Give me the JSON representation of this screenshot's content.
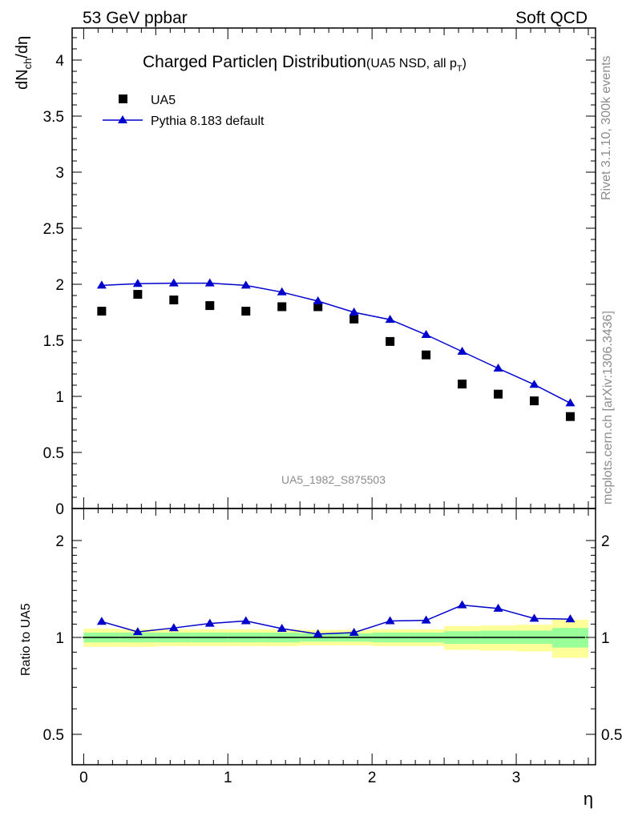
{
  "header": {
    "left": "53 GeV ppbar",
    "right": "Soft QCD"
  },
  "side": {
    "rivet": "Rivet 3.1.10,  300k events",
    "mcplots": "mcplots.cern.ch [arXiv:1306.3436]"
  },
  "colors": {
    "mc": "#0000cc",
    "band_inner": "#99ff99",
    "band_outer": "#ffff99",
    "data": "#000000"
  },
  "chart_data": [
    {
      "type": "scatter",
      "title": "Charged Particle",
      "title_eta": "η",
      "title_rest": " Distribution",
      "title_note": "(UA5 NSD, all p",
      "title_note_sub": "T",
      "title_note_end": ")",
      "ylabel_main": "dN",
      "ylabel_sub": "ch",
      "ylabel_tail": "/dη",
      "xlabel": "η",
      "watermark": "UA5_1982_S875503",
      "ylim": [
        0,
        4.3
      ],
      "xlim": [
        -0.08,
        3.55
      ],
      "yticks": [
        "0",
        "0.5",
        "1",
        "1.5",
        "2",
        "2.5",
        "3",
        "3.5",
        "4"
      ],
      "legend_position": "top-left",
      "series": [
        {
          "name": "UA5",
          "marker": "square",
          "x": [
            0.125,
            0.375,
            0.625,
            0.875,
            1.125,
            1.375,
            1.625,
            1.875,
            2.125,
            2.375,
            2.625,
            2.875,
            3.125,
            3.375
          ],
          "y": [
            1.76,
            1.91,
            1.86,
            1.81,
            1.76,
            1.8,
            1.8,
            1.69,
            1.49,
            1.37,
            1.11,
            1.02,
            0.96,
            0.82
          ]
        },
        {
          "name": "Pythia 8.183 default",
          "marker": "triangle",
          "x": [
            0.125,
            0.375,
            0.625,
            0.875,
            1.125,
            1.375,
            1.625,
            1.875,
            2.125,
            2.375,
            2.625,
            2.875,
            3.125,
            3.375
          ],
          "y": [
            1.99,
            2.005,
            2.01,
            2.01,
            1.99,
            1.93,
            1.85,
            1.75,
            1.685,
            1.55,
            1.4,
            1.25,
            1.105,
            0.94
          ]
        }
      ]
    },
    {
      "type": "line",
      "ylabel": "Ratio to UA5",
      "xlabel": "η",
      "ylim": [
        0.38,
        2.3
      ],
      "xlim": [
        -0.08,
        3.55
      ],
      "yticks": [
        "0.5",
        "1",
        "2"
      ],
      "xticks": [
        "0",
        "1",
        "2",
        "3"
      ],
      "bins": [
        0,
        0.25,
        0.5,
        0.75,
        1.0,
        1.25,
        1.5,
        1.75,
        2.0,
        2.25,
        2.5,
        2.75,
        3.0,
        3.25,
        3.5
      ],
      "band_inner": [
        [
          0.965,
          1.035
        ],
        [
          0.965,
          1.035
        ],
        [
          0.965,
          1.035
        ],
        [
          0.965,
          1.035
        ],
        [
          0.965,
          1.035
        ],
        [
          0.965,
          1.035
        ],
        [
          0.97,
          1.03
        ],
        [
          0.97,
          1.03
        ],
        [
          0.965,
          1.035
        ],
        [
          0.965,
          1.035
        ],
        [
          0.955,
          1.045
        ],
        [
          0.955,
          1.05
        ],
        [
          0.955,
          1.05
        ],
        [
          0.93,
          1.07
        ]
      ],
      "band_outer": [
        [
          0.935,
          1.065
        ],
        [
          0.935,
          1.06
        ],
        [
          0.94,
          1.06
        ],
        [
          0.94,
          1.06
        ],
        [
          0.94,
          1.06
        ],
        [
          0.94,
          1.06
        ],
        [
          0.945,
          1.055
        ],
        [
          0.945,
          1.055
        ],
        [
          0.94,
          1.06
        ],
        [
          0.94,
          1.06
        ],
        [
          0.915,
          1.085
        ],
        [
          0.91,
          1.09
        ],
        [
          0.905,
          1.095
        ],
        [
          0.865,
          1.135
        ]
      ],
      "series": [
        {
          "name": "Pythia 8.183 default",
          "x": [
            0.125,
            0.375,
            0.625,
            0.875,
            1.125,
            1.375,
            1.625,
            1.875,
            2.125,
            2.375,
            2.625,
            2.875,
            3.125,
            3.375
          ],
          "y": [
            1.12,
            1.04,
            1.07,
            1.105,
            1.125,
            1.065,
            1.025,
            1.035,
            1.125,
            1.13,
            1.26,
            1.23,
            1.145,
            1.14
          ]
        }
      ]
    }
  ]
}
